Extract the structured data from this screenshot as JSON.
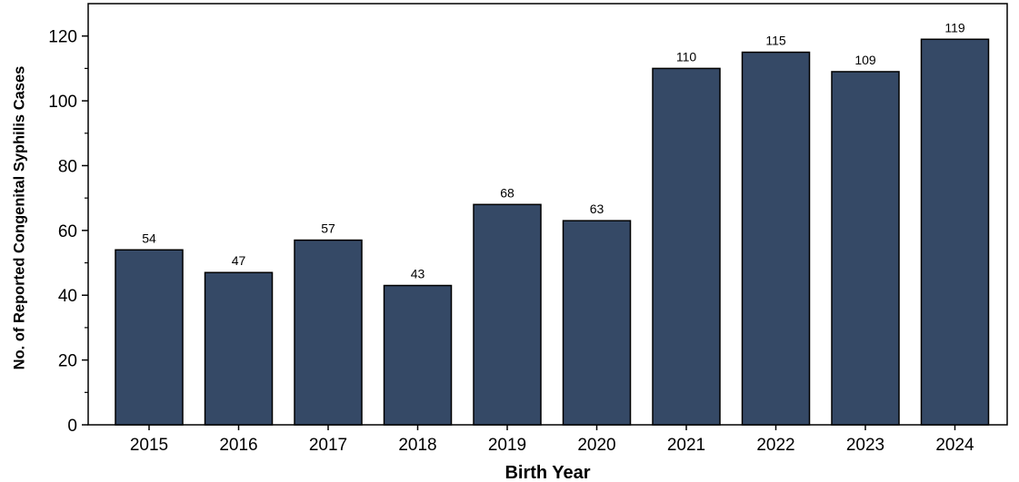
{
  "chart_data": {
    "type": "bar",
    "categories": [
      "2015",
      "2016",
      "2017",
      "2018",
      "2019",
      "2020",
      "2021",
      "2022",
      "2023",
      "2024"
    ],
    "values": [
      54,
      47,
      57,
      43,
      68,
      63,
      110,
      115,
      109,
      119
    ],
    "data_labels": [
      "54",
      "47",
      "57",
      "43",
      "68",
      "63",
      "110",
      "115",
      "109",
      "119"
    ],
    "title": "",
    "xlabel": "Birth Year",
    "ylabel": "No. of Reported Congenital Syphilis Cases",
    "ylim": [
      0,
      130
    ],
    "yticks": [
      0,
      20,
      40,
      60,
      80,
      100,
      120
    ],
    "grid": false,
    "legend": "none",
    "bar_color": "#354966"
  }
}
